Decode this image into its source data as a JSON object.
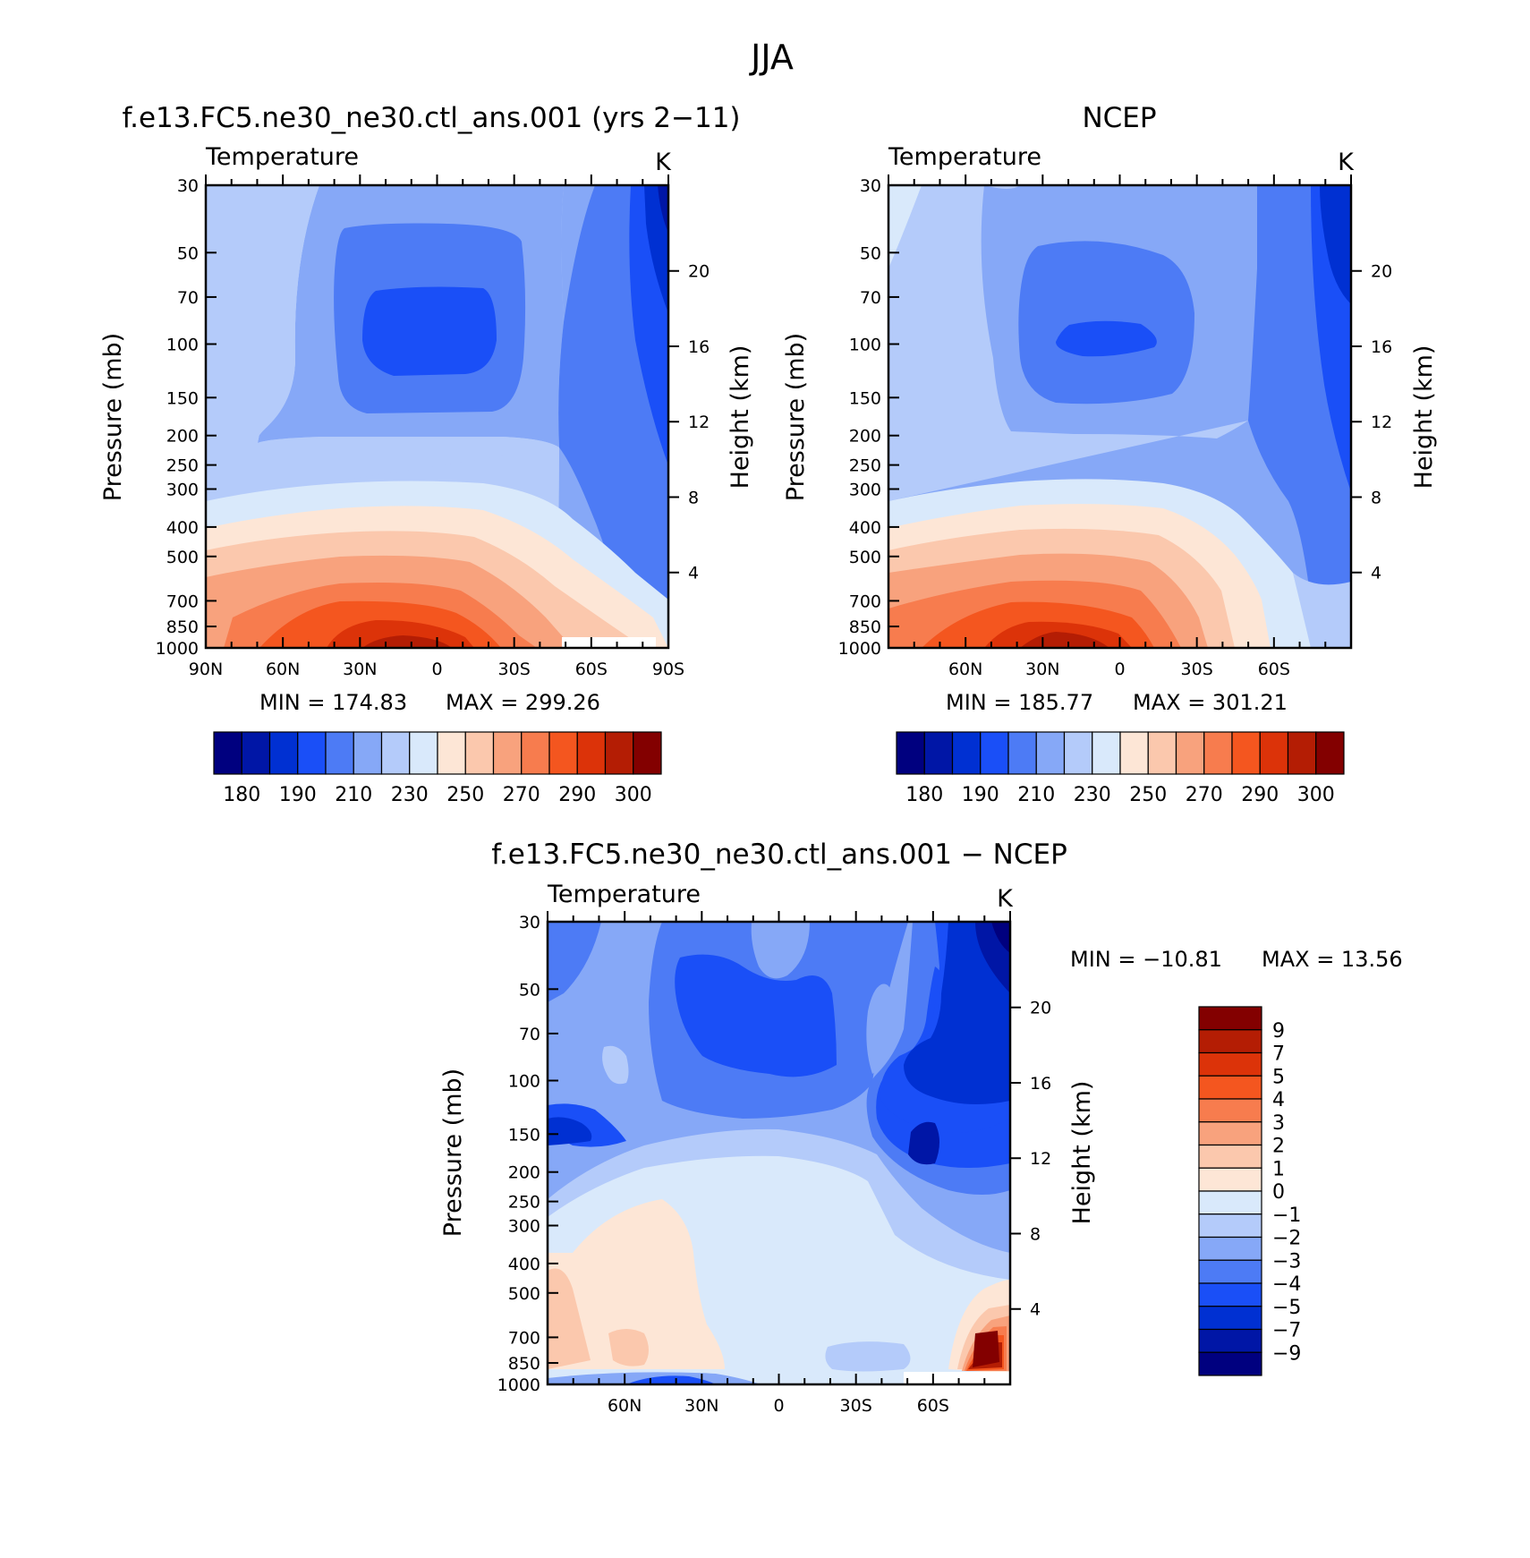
{
  "figure": {
    "title": "JJA"
  },
  "colors": {
    "palette": [
      "#00007f",
      "#0016a6",
      "#0030d2",
      "#1a4ff7",
      "#4d7bf5",
      "#86a8f7",
      "#b4cbfa",
      "#d9e9fb",
      "#fde6d6",
      "#fbc8ad",
      "#f8a27d",
      "#f77c4e",
      "#f4561f",
      "#dc3309",
      "#b41d04",
      "#830000"
    ]
  },
  "units": "K",
  "chart_data": [
    {
      "type": "heatmap",
      "title": "f.e13.FC5.ne30_ne30.ctl_ans.001 (yrs 2−11)",
      "variable": "Temperature",
      "units": "K",
      "ylabel": "Pressure (mb)",
      "y2label": "Height (km)",
      "x_ticks": [
        "90N",
        "60N",
        "30N",
        "0",
        "30S",
        "60S",
        "90S"
      ],
      "x_values": [
        90,
        60,
        30,
        0,
        -30,
        -60,
        -90
      ],
      "y_ticks": [
        30,
        50,
        70,
        100,
        150,
        200,
        250,
        300,
        400,
        500,
        700,
        850,
        1000
      ],
      "y2_ticks": [
        20,
        16,
        12,
        8,
        4
      ],
      "y_scale": "log",
      "min_label": "MIN = 174.83",
      "max_label": "MAX = 299.26",
      "min": 174.83,
      "max": 299.26,
      "colorbar": {
        "orientation": "horizontal",
        "labels": [
          "180",
          "190",
          "210",
          "230",
          "250",
          "270",
          "290",
          "300"
        ]
      }
    },
    {
      "type": "heatmap",
      "title": "NCEP",
      "variable": "Temperature",
      "units": "K",
      "ylabel": "Pressure (mb)",
      "y2label": "Height (km)",
      "x_ticks": [
        "60N",
        "30N",
        "0",
        "30S",
        "60S"
      ],
      "x_values": [
        60,
        30,
        0,
        -30,
        -60
      ],
      "y_ticks": [
        30,
        50,
        70,
        100,
        150,
        200,
        250,
        300,
        400,
        500,
        700,
        850,
        1000
      ],
      "y2_ticks": [
        20,
        16,
        12,
        8,
        4
      ],
      "y_scale": "log",
      "min_label": "MIN = 185.77",
      "max_label": "MAX = 301.21",
      "min": 185.77,
      "max": 301.21,
      "colorbar": {
        "orientation": "horizontal",
        "labels": [
          "180",
          "190",
          "210",
          "230",
          "250",
          "270",
          "290",
          "300"
        ]
      }
    },
    {
      "type": "heatmap",
      "title": "f.e13.FC5.ne30_ne30.ctl_ans.001 − NCEP",
      "variable": "Temperature",
      "units": "K",
      "ylabel": "Pressure (mb)",
      "y2label": "Height (km)",
      "x_ticks": [
        "60N",
        "30N",
        "0",
        "30S",
        "60S"
      ],
      "x_values": [
        60,
        30,
        0,
        -30,
        -60
      ],
      "y_ticks": [
        30,
        50,
        70,
        100,
        150,
        200,
        250,
        300,
        400,
        500,
        700,
        850,
        1000
      ],
      "y2_ticks": [
        20,
        16,
        12,
        8,
        4
      ],
      "y_scale": "log",
      "min_label": "MIN = −10.81",
      "max_label": "MAX =  13.56",
      "min": -10.81,
      "max": 13.56,
      "colorbar": {
        "orientation": "vertical",
        "labels": [
          "9",
          "7",
          "5",
          "4",
          "3",
          "2",
          "1",
          "0",
          "−1",
          "−2",
          "−3",
          "−4",
          "−5",
          "−7",
          "−9"
        ]
      }
    }
  ]
}
